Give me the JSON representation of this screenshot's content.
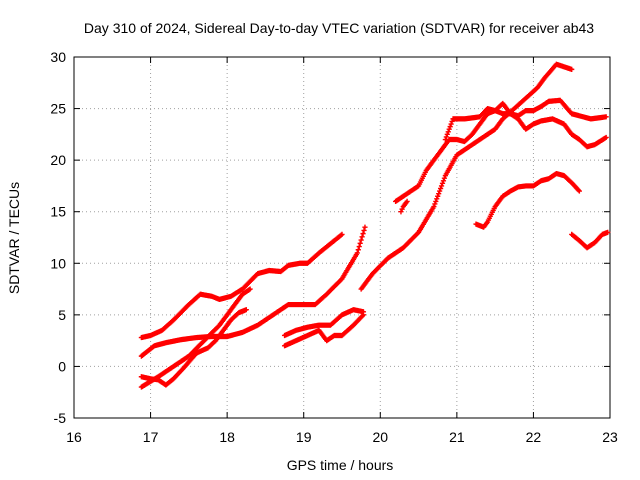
{
  "chart_data": {
    "type": "scatter",
    "title": "Day 310 of 2024, Sidereal Day-to-day VTEC variation (SDTVAR) for receiver ab43",
    "xlabel": "GPS time / hours",
    "ylabel": "SDTVAR / TECUs",
    "xlim": [
      16,
      23
    ],
    "ylim": [
      -5,
      30
    ],
    "x_ticks": [
      "16",
      "17",
      "18",
      "19",
      "20",
      "21",
      "22",
      "23"
    ],
    "y_ticks": [
      "-5",
      "0",
      "5",
      "10",
      "15",
      "20",
      "25",
      "30"
    ],
    "grid": true,
    "marker": "+",
    "color": "#ff0000",
    "series": [
      {
        "points": [
          [
            16.88,
            2.8
          ],
          [
            17.0,
            3.0
          ],
          [
            17.15,
            3.5
          ],
          [
            17.3,
            4.5
          ],
          [
            17.5,
            6.0
          ],
          [
            17.65,
            7.0
          ],
          [
            17.8,
            6.8
          ],
          [
            17.9,
            6.5
          ],
          [
            18.05,
            6.8
          ],
          [
            18.2,
            7.5
          ],
          [
            18.4,
            9.0
          ],
          [
            18.55,
            9.3
          ],
          [
            18.7,
            9.2
          ],
          [
            18.8,
            9.8
          ],
          [
            18.95,
            10.0
          ],
          [
            19.05,
            10.0
          ],
          [
            19.2,
            11.0
          ],
          [
            19.4,
            12.2
          ],
          [
            19.5,
            12.8
          ]
        ]
      },
      {
        "points": [
          [
            16.88,
            1.0
          ],
          [
            17.05,
            2.0
          ],
          [
            17.2,
            2.3
          ],
          [
            17.4,
            2.6
          ],
          [
            17.6,
            2.8
          ],
          [
            17.8,
            2.9
          ],
          [
            18.0,
            2.9
          ],
          [
            18.2,
            3.3
          ],
          [
            18.4,
            4.0
          ],
          [
            18.6,
            5.0
          ],
          [
            18.8,
            6.0
          ],
          [
            19.0,
            6.0
          ],
          [
            19.15,
            6.0
          ],
          [
            19.3,
            7.0
          ],
          [
            19.5,
            8.5
          ],
          [
            19.7,
            11.0
          ],
          [
            19.8,
            13.5
          ]
        ]
      },
      {
        "points": [
          [
            16.88,
            -1.0
          ],
          [
            17.0,
            -1.2
          ],
          [
            17.1,
            -1.3
          ],
          [
            17.2,
            -1.8
          ],
          [
            17.3,
            -1.2
          ],
          [
            17.45,
            0.0
          ],
          [
            17.6,
            1.3
          ],
          [
            17.75,
            1.8
          ],
          [
            17.85,
            2.5
          ],
          [
            17.95,
            3.5
          ],
          [
            18.05,
            4.5
          ],
          [
            18.15,
            5.2
          ],
          [
            18.25,
            5.5
          ]
        ]
      },
      {
        "points": [
          [
            16.88,
            -2.0
          ],
          [
            17.1,
            -1.0
          ],
          [
            17.3,
            0.0
          ],
          [
            17.5,
            1.0
          ],
          [
            17.7,
            2.5
          ],
          [
            17.9,
            4.0
          ],
          [
            18.05,
            5.5
          ],
          [
            18.2,
            7.0
          ],
          [
            18.3,
            7.5
          ]
        ]
      },
      {
        "points": [
          [
            18.75,
            3.0
          ],
          [
            18.9,
            3.5
          ],
          [
            19.05,
            3.8
          ],
          [
            19.2,
            4.0
          ],
          [
            19.35,
            4.0
          ],
          [
            19.5,
            5.0
          ],
          [
            19.65,
            5.5
          ],
          [
            19.78,
            5.3
          ]
        ]
      },
      {
        "points": [
          [
            18.75,
            2.0
          ],
          [
            18.9,
            2.5
          ],
          [
            19.05,
            3.0
          ],
          [
            19.2,
            3.5
          ],
          [
            19.3,
            2.5
          ],
          [
            19.4,
            3.0
          ],
          [
            19.5,
            3.0
          ],
          [
            19.65,
            4.0
          ],
          [
            19.78,
            5.0
          ]
        ]
      },
      {
        "points": [
          [
            19.75,
            7.5
          ],
          [
            19.9,
            9.0
          ],
          [
            20.1,
            10.5
          ],
          [
            20.3,
            11.5
          ],
          [
            20.5,
            13.0
          ],
          [
            20.7,
            15.5
          ],
          [
            20.85,
            18.5
          ],
          [
            21.0,
            20.5
          ],
          [
            21.2,
            21.5
          ],
          [
            21.4,
            22.5
          ],
          [
            21.5,
            23.0
          ],
          [
            21.6,
            24.0
          ],
          [
            21.75,
            25.0
          ],
          [
            21.9,
            26.0
          ],
          [
            22.05,
            27.0
          ],
          [
            22.15,
            28.0
          ],
          [
            22.3,
            29.3
          ],
          [
            22.5,
            28.8
          ]
        ]
      },
      {
        "points": [
          [
            20.2,
            16.0
          ],
          [
            20.3,
            16.5
          ],
          [
            20.4,
            17.0
          ],
          [
            20.5,
            17.5
          ],
          [
            20.6,
            19.0
          ],
          [
            20.7,
            20.0
          ],
          [
            20.8,
            21.0
          ],
          [
            20.9,
            22.0
          ],
          [
            21.0,
            22.0
          ],
          [
            21.1,
            21.8
          ],
          [
            21.2,
            22.5
          ],
          [
            21.3,
            23.5
          ],
          [
            21.4,
            24.5
          ],
          [
            21.5,
            24.8
          ],
          [
            21.6,
            24.5
          ],
          [
            21.7,
            24.5
          ],
          [
            21.8,
            24.3
          ],
          [
            21.9,
            24.8
          ],
          [
            22.0,
            24.8
          ],
          [
            22.1,
            25.2
          ],
          [
            22.2,
            25.7
          ],
          [
            22.35,
            25.8
          ],
          [
            22.5,
            24.5
          ],
          [
            22.6,
            24.3
          ],
          [
            22.75,
            24.0
          ],
          [
            22.95,
            24.2
          ]
        ]
      },
      {
        "points": [
          [
            20.85,
            22.0
          ],
          [
            20.9,
            23.0
          ],
          [
            20.95,
            24.0
          ],
          [
            21.1,
            24.0
          ],
          [
            21.3,
            24.2
          ],
          [
            21.4,
            25.0
          ],
          [
            21.5,
            24.8
          ],
          [
            21.6,
            25.5
          ],
          [
            21.7,
            24.5
          ],
          [
            21.8,
            24.0
          ],
          [
            21.9,
            23.0
          ],
          [
            22.0,
            23.5
          ],
          [
            22.1,
            23.8
          ],
          [
            22.25,
            24.0
          ],
          [
            22.4,
            23.5
          ],
          [
            22.5,
            22.5
          ],
          [
            22.6,
            22.0
          ],
          [
            22.7,
            21.3
          ],
          [
            22.8,
            21.5
          ],
          [
            22.95,
            22.2
          ]
        ]
      },
      {
        "points": [
          [
            20.27,
            15.0
          ],
          [
            20.3,
            15.5
          ],
          [
            20.35,
            16.0
          ]
        ]
      },
      {
        "points": [
          [
            21.25,
            13.8
          ],
          [
            21.35,
            13.5
          ],
          [
            21.4,
            14.0
          ],
          [
            21.5,
            15.5
          ],
          [
            21.6,
            16.5
          ],
          [
            21.7,
            17.0
          ],
          [
            21.8,
            17.4
          ],
          [
            21.9,
            17.5
          ],
          [
            22.0,
            17.5
          ],
          [
            22.1,
            18.0
          ],
          [
            22.2,
            18.2
          ],
          [
            22.3,
            18.7
          ],
          [
            22.4,
            18.5
          ],
          [
            22.5,
            17.8
          ],
          [
            22.6,
            17.0
          ]
        ]
      },
      {
        "points": [
          [
            22.5,
            12.8
          ],
          [
            22.6,
            12.2
          ],
          [
            22.7,
            11.5
          ],
          [
            22.8,
            12.0
          ],
          [
            22.9,
            12.8
          ],
          [
            22.97,
            13.0
          ]
        ]
      }
    ]
  }
}
